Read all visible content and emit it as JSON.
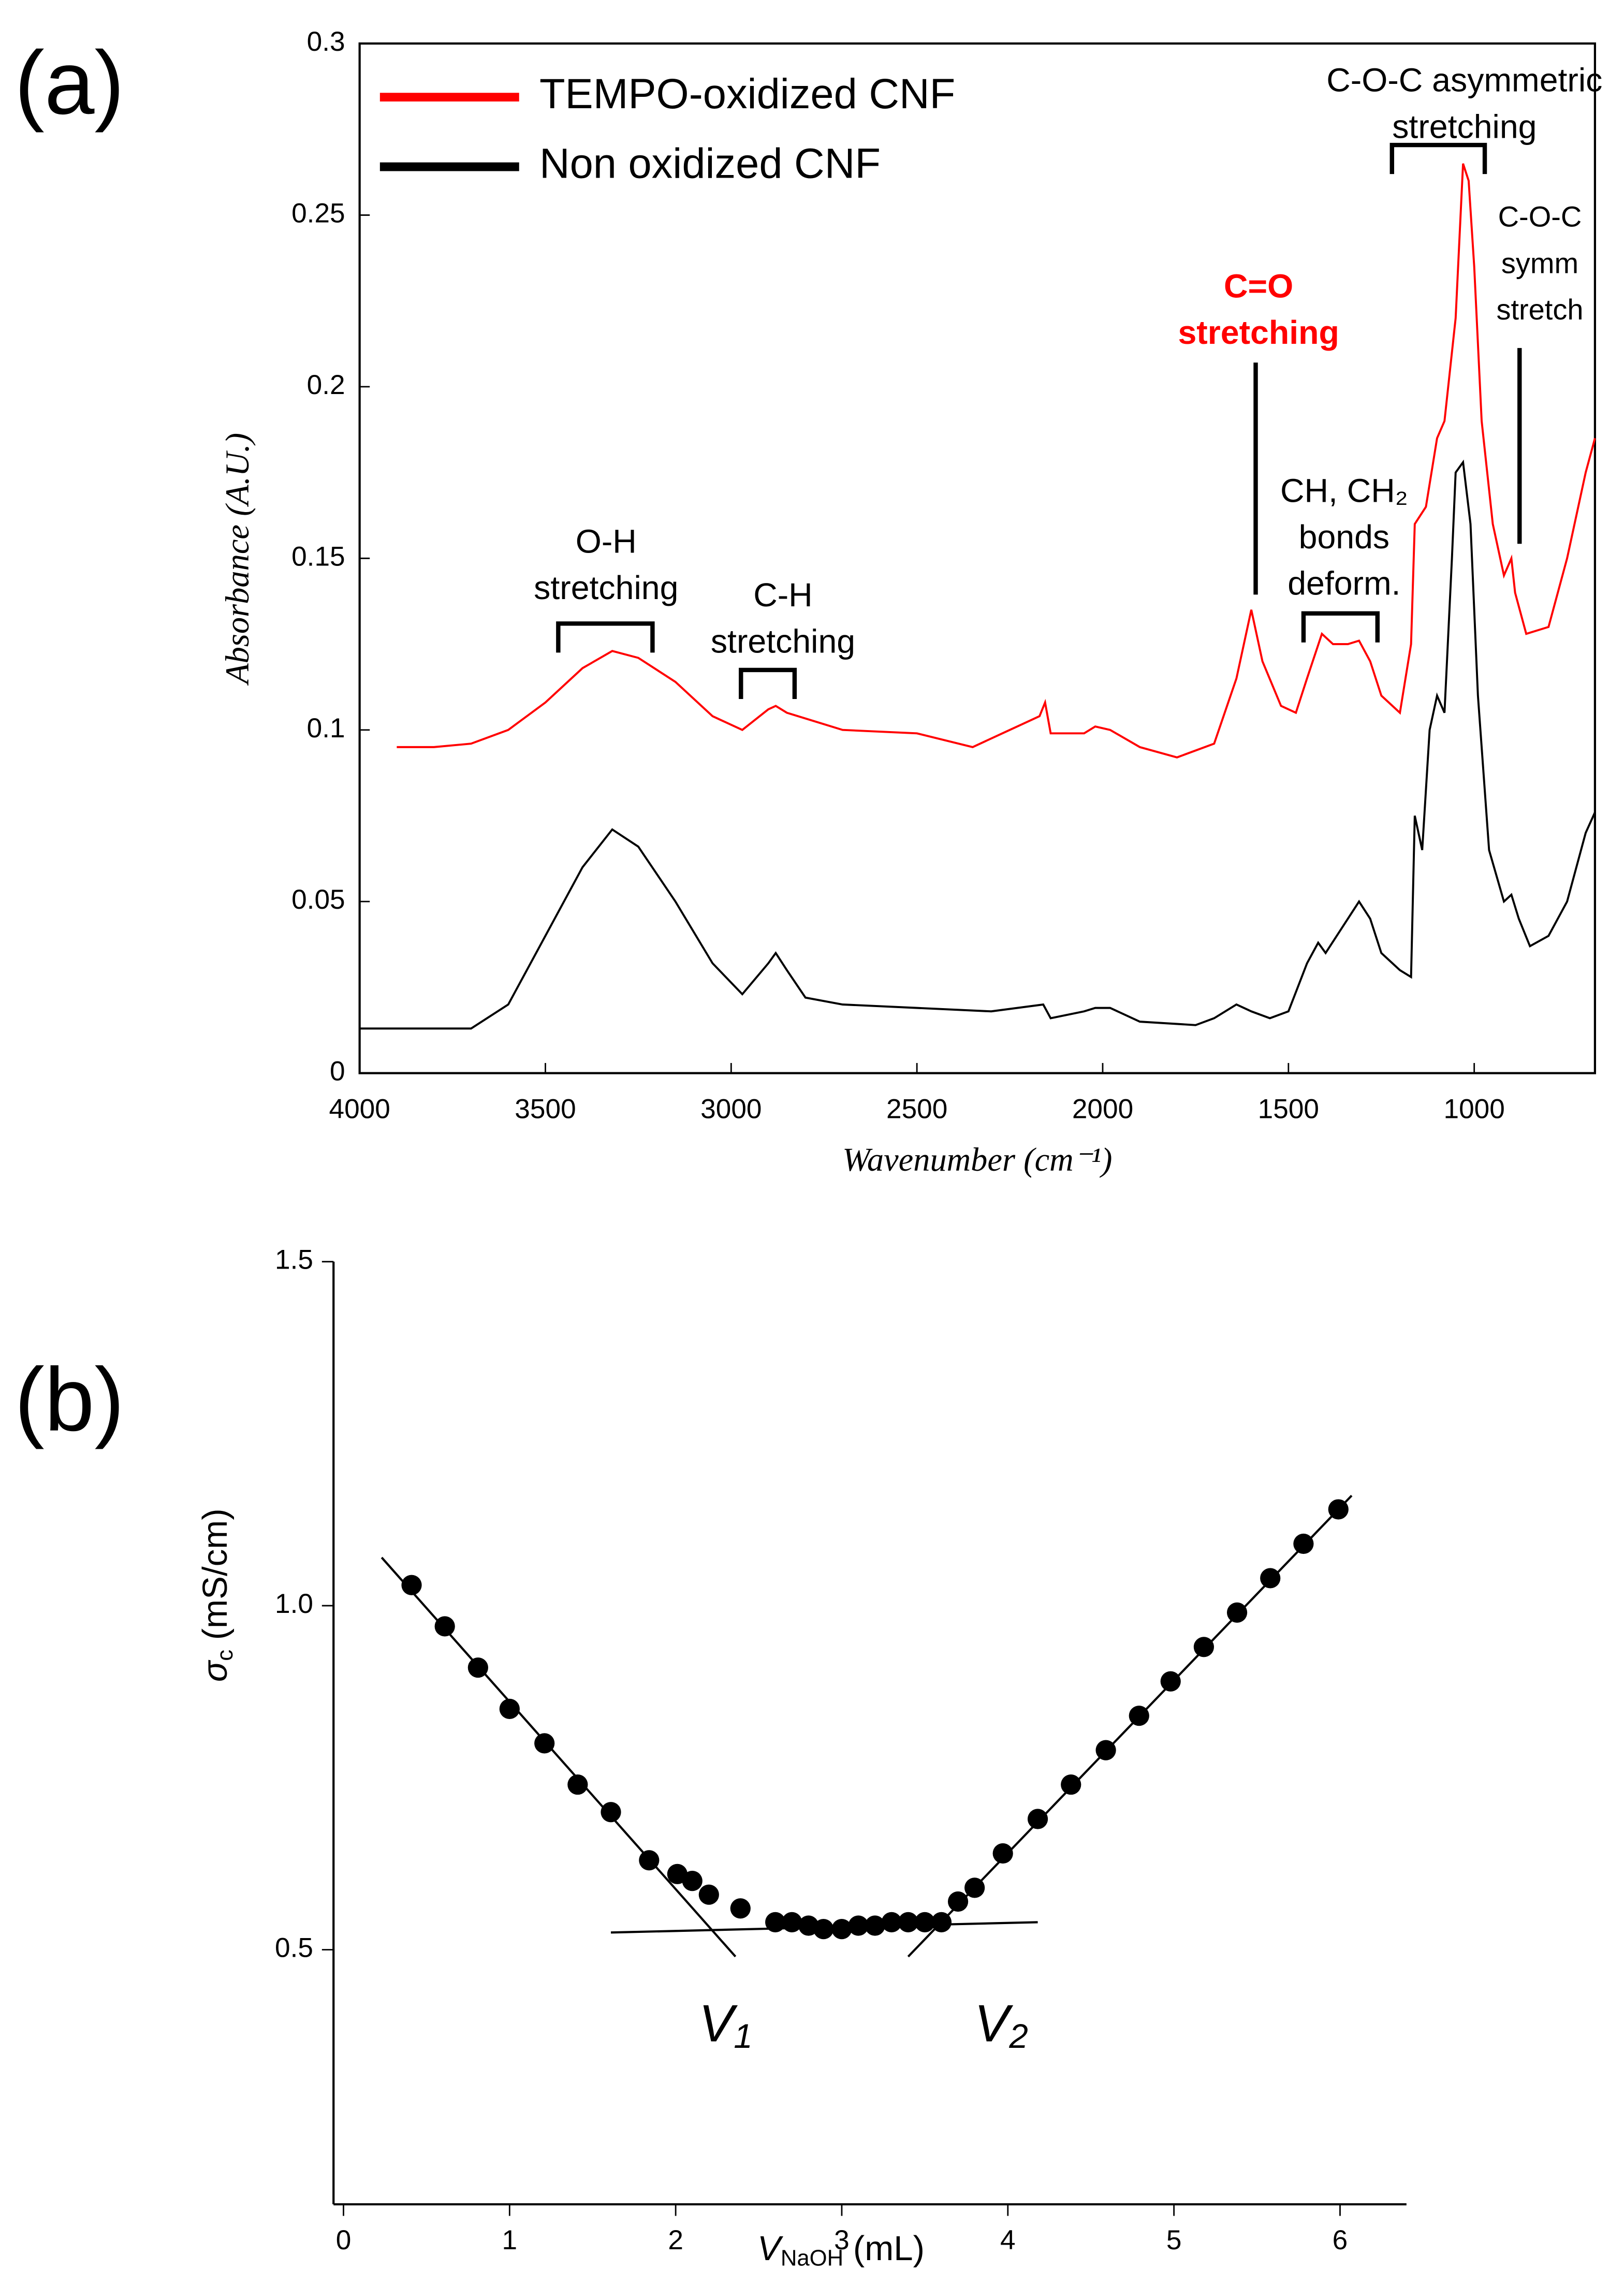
{
  "chart_data": [
    {
      "type": "line",
      "panel_label": "(a)",
      "x_label": "Wavenumber (cm⁻¹)",
      "y_label": "Absorbance (A.U.)",
      "xlim": [
        4000,
        675
      ],
      "ylim": [
        0,
        0.3
      ],
      "xticks": [
        4000,
        3500,
        3000,
        2500,
        2000,
        1500,
        1000
      ],
      "yticks": [
        0,
        0.05,
        0.1,
        0.15,
        0.2,
        0.25,
        0.3
      ],
      "legend": "upper left",
      "series": [
        {
          "name": "TEMPO-oxidized CNF",
          "color": "#ff0000",
          "x": [
            3900,
            3800,
            3700,
            3600,
            3500,
            3400,
            3320,
            3250,
            3150,
            3050,
            2970,
            2900,
            2880,
            2850,
            2700,
            2500,
            2350,
            2250,
            2170,
            2155,
            2140,
            2050,
            2020,
            1980,
            1900,
            1800,
            1700,
            1640,
            1600,
            1570,
            1520,
            1480,
            1450,
            1410,
            1380,
            1340,
            1310,
            1280,
            1250,
            1200,
            1170,
            1160,
            1130,
            1100,
            1080,
            1050,
            1030,
            1015,
            1000,
            980,
            950,
            920,
            900,
            890,
            860,
            800,
            750,
            700,
            675
          ],
          "values": [
            0.095,
            0.095,
            0.096,
            0.1,
            0.108,
            0.118,
            0.123,
            0.121,
            0.114,
            0.104,
            0.1,
            0.106,
            0.107,
            0.105,
            0.1,
            0.099,
            0.095,
            0.1,
            0.104,
            0.108,
            0.099,
            0.099,
            0.101,
            0.1,
            0.095,
            0.092,
            0.096,
            0.115,
            0.135,
            0.12,
            0.107,
            0.105,
            0.115,
            0.128,
            0.125,
            0.125,
            0.126,
            0.12,
            0.11,
            0.105,
            0.125,
            0.16,
            0.165,
            0.185,
            0.19,
            0.22,
            0.265,
            0.26,
            0.235,
            0.19,
            0.16,
            0.145,
            0.15,
            0.14,
            0.128,
            0.13,
            0.15,
            0.175,
            0.185
          ]
        },
        {
          "name": "Non oxidized CNF",
          "color": "#000000",
          "x": [
            4000,
            3800,
            3700,
            3600,
            3500,
            3400,
            3320,
            3250,
            3150,
            3050,
            2970,
            2900,
            2880,
            2850,
            2800,
            2700,
            2500,
            2300,
            2160,
            2140,
            2050,
            2020,
            1980,
            1900,
            1750,
            1700,
            1640,
            1600,
            1550,
            1500,
            1450,
            1420,
            1400,
            1370,
            1340,
            1310,
            1280,
            1250,
            1200,
            1170,
            1160,
            1140,
            1120,
            1100,
            1080,
            1060,
            1050,
            1030,
            1010,
            990,
            960,
            920,
            900,
            880,
            850,
            800,
            750,
            700,
            675
          ],
          "values": [
            0.013,
            0.013,
            0.013,
            0.02,
            0.04,
            0.06,
            0.071,
            0.066,
            0.05,
            0.032,
            0.023,
            0.032,
            0.035,
            0.03,
            0.022,
            0.02,
            0.019,
            0.018,
            0.02,
            0.016,
            0.018,
            0.019,
            0.019,
            0.015,
            0.014,
            0.016,
            0.02,
            0.018,
            0.016,
            0.018,
            0.032,
            0.038,
            0.035,
            0.04,
            0.045,
            0.05,
            0.045,
            0.035,
            0.03,
            0.028,
            0.075,
            0.065,
            0.1,
            0.11,
            0.105,
            0.15,
            0.175,
            0.178,
            0.16,
            0.11,
            0.065,
            0.05,
            0.052,
            0.045,
            0.037,
            0.04,
            0.05,
            0.07,
            0.076
          ]
        }
      ],
      "annotations": [
        {
          "lines": [
            "O-H",
            "stretching"
          ],
          "color": "#000000",
          "bold": false
        },
        {
          "lines": [
            "C-H",
            "stretching"
          ],
          "color": "#000000",
          "bold": false
        },
        {
          "lines": [
            "C=O",
            "stretching"
          ],
          "color": "#ff0000",
          "bold": true
        },
        {
          "lines": [
            "CH, CH₂",
            "bonds",
            "deform."
          ],
          "color": "#000000",
          "bold": false
        },
        {
          "lines": [
            "C-O-C asymmetric",
            "stretching"
          ],
          "color": "#000000",
          "bold": false
        },
        {
          "lines": [
            "C-O-C",
            "symm",
            "stretch"
          ],
          "color": "#000000",
          "bold": false
        }
      ]
    },
    {
      "type": "scatter",
      "panel_label": "(b)",
      "x_label": {
        "main": "V",
        "sub": "NaOH",
        "rest": " (mL)"
      },
      "y_label": {
        "main": "σ",
        "sub": "c",
        "rest": " (mS/cm)"
      },
      "xlim": [
        -0.06,
        6.4
      ],
      "ylim": [
        0.13,
        1.5
      ],
      "xticks": [
        0,
        1,
        2,
        3,
        4,
        5,
        6
      ],
      "yticks": [
        0.5,
        {
          "value": 1,
          "label": "1.0"
        },
        1.5
      ],
      "color": "#000000",
      "x": [
        0.41,
        0.61,
        0.81,
        1.0,
        1.21,
        1.41,
        1.61,
        1.84,
        2.01,
        2.1,
        2.2,
        2.39,
        2.6,
        2.7,
        2.8,
        2.89,
        3.0,
        3.1,
        3.2,
        3.3,
        3.4,
        3.5,
        3.6,
        3.7,
        3.8,
        3.97,
        4.18,
        4.38,
        4.59,
        4.79,
        4.98,
        5.18,
        5.38,
        5.58,
        5.78,
        5.99
      ],
      "values": [
        1.03,
        0.97,
        0.91,
        0.85,
        0.8,
        0.74,
        0.7,
        0.63,
        0.61,
        0.6,
        0.58,
        0.56,
        0.54,
        0.54,
        0.535,
        0.53,
        0.53,
        0.535,
        0.535,
        0.54,
        0.54,
        0.54,
        0.54,
        0.57,
        0.59,
        0.64,
        0.69,
        0.74,
        0.79,
        0.84,
        0.89,
        0.94,
        0.99,
        1.04,
        1.09,
        1.14
      ],
      "fit_lines": [
        {
          "x": [
            0.23,
            2.36
          ],
          "y": [
            1.07,
            0.49
          ]
        },
        {
          "x": [
            1.61,
            4.18
          ],
          "y": [
            0.525,
            0.54
          ]
        },
        {
          "x": [
            3.4,
            6.07
          ],
          "y": [
            0.49,
            1.16
          ]
        }
      ],
      "markers": [
        {
          "main": "V",
          "sub": "1"
        },
        {
          "main": "V",
          "sub": "2"
        }
      ]
    }
  ]
}
